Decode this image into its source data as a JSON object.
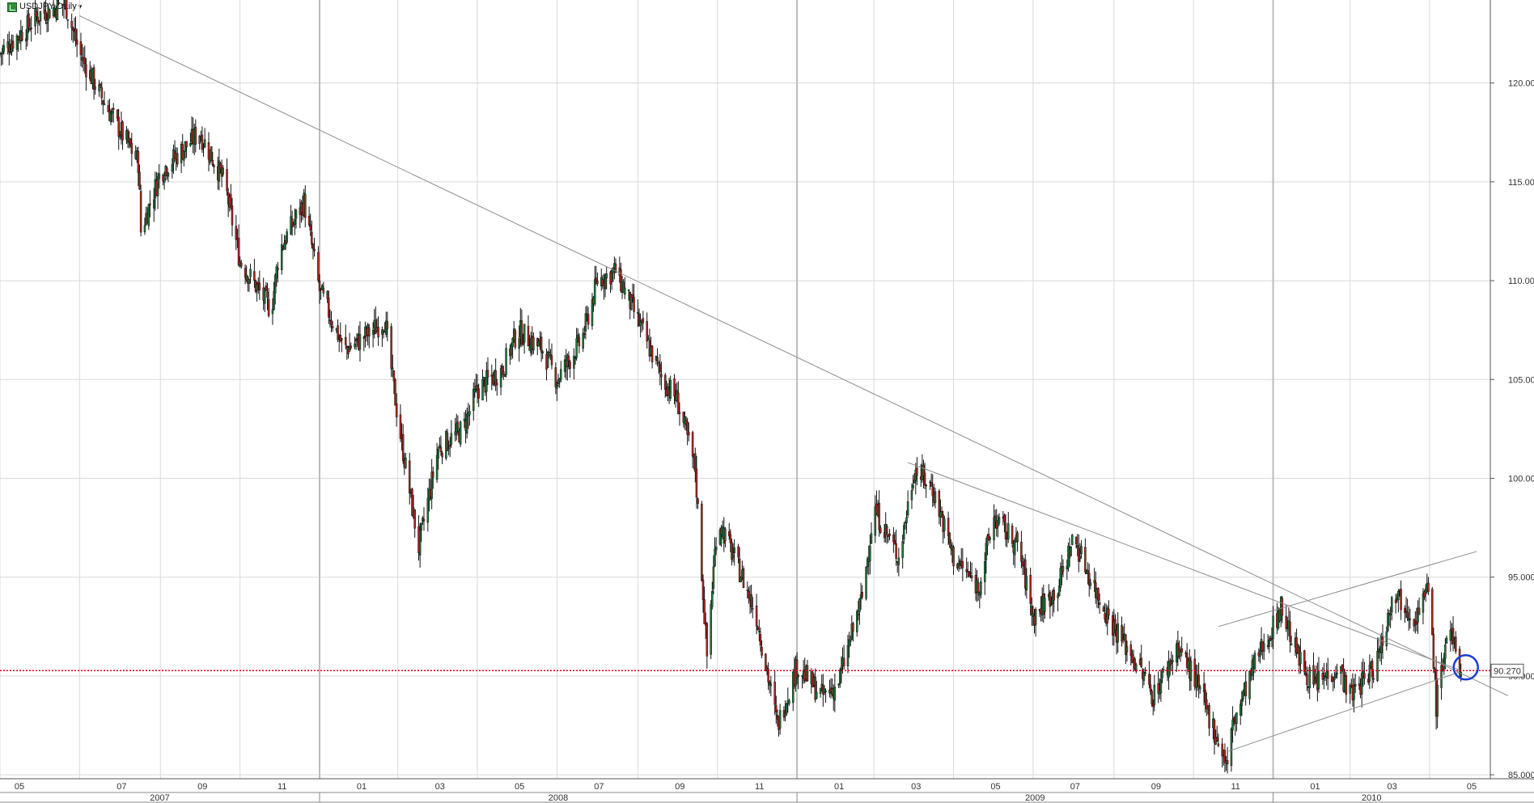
{
  "header": {
    "symbol_label": "USDJPY Daily",
    "icon": "chart-symbol-icon"
  },
  "colors": {
    "up_candle": "#1f7a3a",
    "down_candle": "#b3261e",
    "wick": "#111111",
    "grid": "#d9d9d9",
    "trendline": "#8c8c8c",
    "price_line": "#e0001b",
    "circle": "#1a3fd1"
  },
  "chart_data": {
    "type": "candlestick",
    "symbol": "USDJPY",
    "timeframe": "Daily",
    "ylim": [
      84.8,
      124.2
    ],
    "y_ticks": [
      "85.000",
      "90.000",
      "95.000",
      "100.000",
      "105.000",
      "110.000",
      "115.000",
      "120.000"
    ],
    "x_month_ticks": [
      "05",
      "07",
      "09",
      "11",
      "01",
      "03",
      "05",
      "07",
      "09",
      "11",
      "01",
      "03",
      "05",
      "07",
      "09",
      "11",
      "01",
      "03",
      "05"
    ],
    "x_year_ticks": [
      "2007",
      "2008",
      "2009",
      "2010"
    ],
    "current_price": "90.270",
    "price_path": [
      [
        "2007-05",
        121.5
      ],
      [
        "2007-06",
        123.5
      ],
      [
        "2007-06-20",
        124.0
      ],
      [
        "2007-07",
        121.5
      ],
      [
        "2007-07-20",
        119.0
      ],
      [
        "2007-08-15",
        116.0
      ],
      [
        "2007-08-17",
        112.5
      ],
      [
        "2007-09",
        115.5
      ],
      [
        "2007-10",
        117.5
      ],
      [
        "2007-10-20",
        115.0
      ],
      [
        "2007-11",
        111.0
      ],
      [
        "2007-11-25",
        108.5
      ],
      [
        "2007-12",
        111.5
      ],
      [
        "2007-12-20",
        114.0
      ],
      [
        "2008-01",
        109.5
      ],
      [
        "2008-01-20",
        106.5
      ],
      [
        "2008-02",
        107.0
      ],
      [
        "2008-02-20",
        108.0
      ],
      [
        "2008-03",
        103.0
      ],
      [
        "2008-03-17",
        96.5
      ],
      [
        "2008-04",
        101.5
      ],
      [
        "2008-04-20",
        102.5
      ],
      [
        "2008-05",
        104.5
      ],
      [
        "2008-05-20",
        105.5
      ],
      [
        "2008-06",
        107.5
      ],
      [
        "2008-06-20",
        106.5
      ],
      [
        "2008-07",
        105.0
      ],
      [
        "2008-07-20",
        107.0
      ],
      [
        "2008-08",
        110.0
      ],
      [
        "2008-08-15",
        110.5
      ],
      [
        "2008-09",
        108.0
      ],
      [
        "2008-09-20",
        105.0
      ],
      [
        "2008-10",
        104.0
      ],
      [
        "2008-10-15",
        100.5
      ],
      [
        "2008-10-24",
        91.0
      ],
      [
        "2008-11",
        98.0
      ],
      [
        "2008-11-20",
        95.0
      ],
      [
        "2008-12",
        93.0
      ],
      [
        "2008-12-17",
        87.5
      ],
      [
        "2009-01",
        90.5
      ],
      [
        "2009-01-20",
        89.0
      ],
      [
        "2009-02",
        89.5
      ],
      [
        "2009-02-20",
        94.0
      ],
      [
        "2009-03",
        98.5
      ],
      [
        "2009-03-20",
        96.0
      ],
      [
        "2009-04",
        100.5
      ],
      [
        "2009-04-15",
        99.5
      ],
      [
        "2009-05",
        96.0
      ],
      [
        "2009-05-20",
        94.5
      ],
      [
        "2009-06",
        98.0
      ],
      [
        "2009-06-20",
        96.5
      ],
      [
        "2009-07",
        93.0
      ],
      [
        "2009-07-20",
        94.5
      ],
      [
        "2009-08",
        97.0
      ],
      [
        "2009-08-20",
        94.0
      ],
      [
        "2009-09",
        92.5
      ],
      [
        "2009-09-20",
        90.5
      ],
      [
        "2009-10",
        89.0
      ],
      [
        "2009-10-20",
        91.5
      ],
      [
        "2009-11",
        90.0
      ],
      [
        "2009-11-27",
        85.5
      ],
      [
        "2009-12",
        87.5
      ],
      [
        "2009-12-20",
        91.0
      ],
      [
        "2010-01",
        92.5
      ],
      [
        "2010-01-07",
        93.5
      ],
      [
        "2010-01-20",
        91.0
      ],
      [
        "2010-02",
        89.5
      ],
      [
        "2010-02-20",
        90.5
      ],
      [
        "2010-03",
        89.0
      ],
      [
        "2010-03-20",
        90.5
      ],
      [
        "2010-04",
        93.5
      ],
      [
        "2010-04-02",
        94.5
      ],
      [
        "2010-04-20",
        93.0
      ],
      [
        "2010-05",
        94.5
      ],
      [
        "2010-05-06",
        88.5
      ],
      [
        "2010-05-15",
        92.5
      ],
      [
        "2010-05-25",
        90.3
      ]
    ],
    "trendlines": [
      {
        "name": "long-term-downtrend",
        "from": [
          "2007-07-01",
          123.4
        ],
        "to": [
          "2010-06-30",
          89.0
        ]
      },
      {
        "name": "2009-downtrend",
        "from": [
          "2009-03-27",
          100.8
        ],
        "to": [
          "2010-05-24",
          90.3
        ]
      },
      {
        "name": "channel-lower",
        "from": [
          "2009-11-28",
          86.2
        ],
        "to": [
          "2010-05-24",
          90.2
        ]
      },
      {
        "name": "channel-upper",
        "from": [
          "2009-11-20",
          92.5
        ],
        "to": [
          "2010-06-06",
          96.3
        ]
      }
    ]
  }
}
